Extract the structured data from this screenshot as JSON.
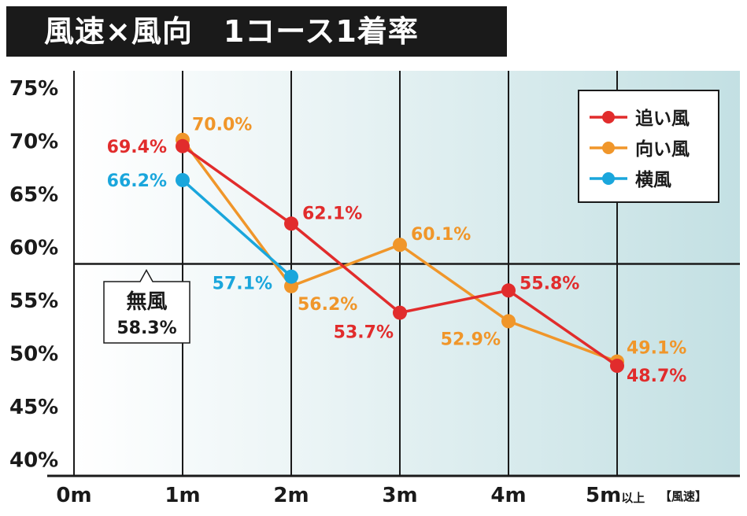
{
  "title": "風速×風向　1コース1着率",
  "chart_data": {
    "type": "line",
    "title": "風速×風向　1コース1着率",
    "categories": [
      "0m",
      "1m",
      "2m",
      "3m",
      "4m",
      "5m"
    ],
    "x_tick_suffixes": [
      "",
      "",
      "",
      "",
      "",
      "以上"
    ],
    "xlabel": "【風速】",
    "ylabel": "",
    "y_ticks": [
      "40%",
      "45%",
      "50%",
      "55%",
      "60%",
      "65%",
      "70%",
      "75%"
    ],
    "ylim": [
      38.4,
      76.5
    ],
    "grid": true,
    "legend_position": "top-right",
    "series": [
      {
        "name": "追い風",
        "color": "#e12c2c",
        "x": [
          "1m",
          "2m",
          "3m",
          "4m",
          "5m"
        ],
        "values": [
          69.4,
          62.1,
          53.7,
          55.8,
          48.7
        ],
        "labels": [
          "69.4%",
          "62.1%",
          "53.7%",
          "55.8%",
          "48.7%"
        ]
      },
      {
        "name": "向い風",
        "color": "#f0962a",
        "x": [
          "1m",
          "2m",
          "3m",
          "4m",
          "5m"
        ],
        "values": [
          70.0,
          56.2,
          60.1,
          52.9,
          49.1
        ],
        "labels": [
          "70.0%",
          "56.2%",
          "60.1%",
          "52.9%",
          "49.1%"
        ]
      },
      {
        "name": "横風",
        "color": "#1aa6dc",
        "x": [
          "1m",
          "2m"
        ],
        "values": [
          66.2,
          57.1
        ],
        "labels": [
          "66.2%",
          "57.1%"
        ]
      }
    ],
    "reference_line": {
      "value": 58.3,
      "label_line1": "無風",
      "label_line2": "58.3%"
    }
  }
}
